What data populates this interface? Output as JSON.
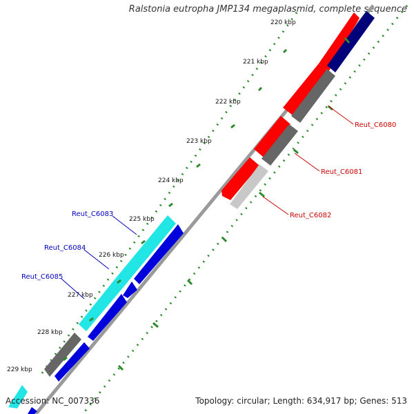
{
  "header": {
    "title": "Ralstonia eutropha JMP134 megaplasmid, complete sequence"
  },
  "footer": {
    "accession": "Accession: NC_007336",
    "stats": "Topology: circular; Length: 634,917 bp; Genes: 513"
  },
  "ticks": [
    "220 kbp",
    "221 kbp",
    "222 kbp",
    "223 kbp",
    "224 kbp",
    "225 kbp",
    "226 kbp",
    "227 kbp",
    "228 kbp",
    "229 kbp"
  ],
  "genes": {
    "right": [
      "Reut_C6080",
      "Reut_C6081",
      "Reut_C6082"
    ],
    "left": [
      "Reut_C6083",
      "Reut_C6084",
      "Reut_C6085"
    ]
  },
  "colors": {
    "forward_cds": "#ff0000",
    "reverse_cds": "#0000dd",
    "dark_reverse": "#00007a",
    "highlight_cds": "#22e6e6",
    "gray_feature": "#666666",
    "light_gray_feature": "#c8c8c8",
    "backbone": "#9a9a9a",
    "tick_dots": "#2a8a2a",
    "label_right": "#cc0000",
    "label_left": "#0000bb"
  }
}
